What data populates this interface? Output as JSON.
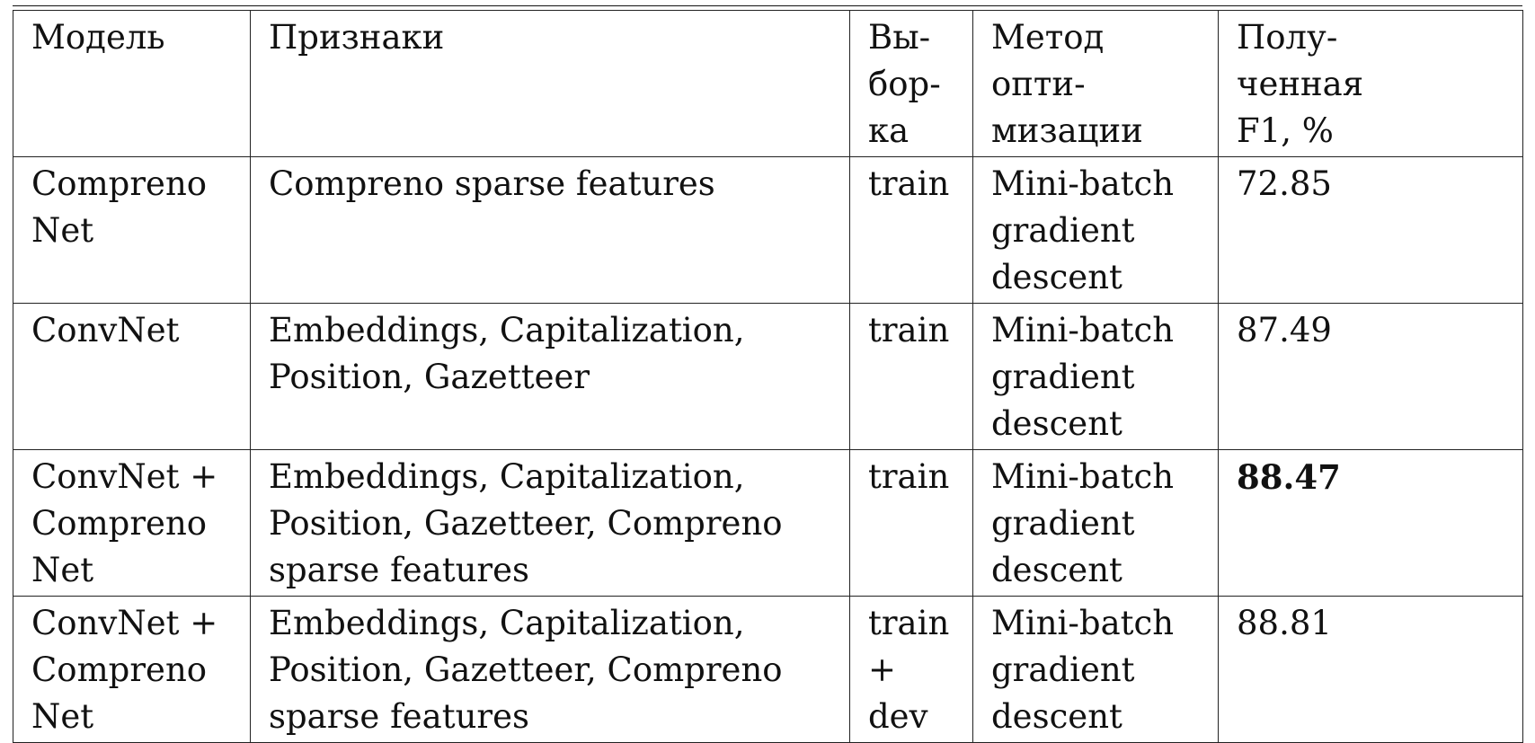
{
  "table": {
    "headers": [
      [
        "Модель"
      ],
      [
        "Признаки"
      ],
      [
        "Вы-",
        "бор-",
        "ка"
      ],
      [
        "Метод опти-",
        "мизации"
      ],
      [
        "Полу-",
        "ченная",
        "F1, %"
      ]
    ],
    "rows": [
      {
        "model": [
          "Compreno",
          "Net"
        ],
        "features": [
          "Compreno sparse features"
        ],
        "sample": [
          "train"
        ],
        "method": [
          "Mini-batch",
          "gradient",
          "descent"
        ],
        "f1": "72.85",
        "f1_bold": false
      },
      {
        "model": [
          "ConvNet"
        ],
        "features": [
          "Embeddings, Capitalization,",
          "Position, Gazetteer"
        ],
        "sample": [
          "train"
        ],
        "method": [
          "Mini-batch",
          "gradient",
          "descent"
        ],
        "f1": "87.49",
        "f1_bold": false
      },
      {
        "model": [
          "ConvNet +",
          "Compreno",
          "Net"
        ],
        "features": [
          "Embeddings, Capitalization,",
          "Position, Gazetteer, Compreno",
          "sparse features"
        ],
        "sample": [
          "train"
        ],
        "method": [
          "Mini-batch",
          "gradient",
          "descent"
        ],
        "f1": "88.47",
        "f1_bold": true
      },
      {
        "model": [
          "ConvNet +",
          "Compreno",
          "Net"
        ],
        "features": [
          "Embeddings, Capitalization,",
          "Position, Gazetteer, Compreno",
          "sparse features"
        ],
        "sample": [
          "train",
          "+",
          "dev"
        ],
        "method": [
          "Mini-batch",
          "gradient",
          "descent"
        ],
        "f1": "88.81",
        "f1_bold": false
      }
    ]
  }
}
